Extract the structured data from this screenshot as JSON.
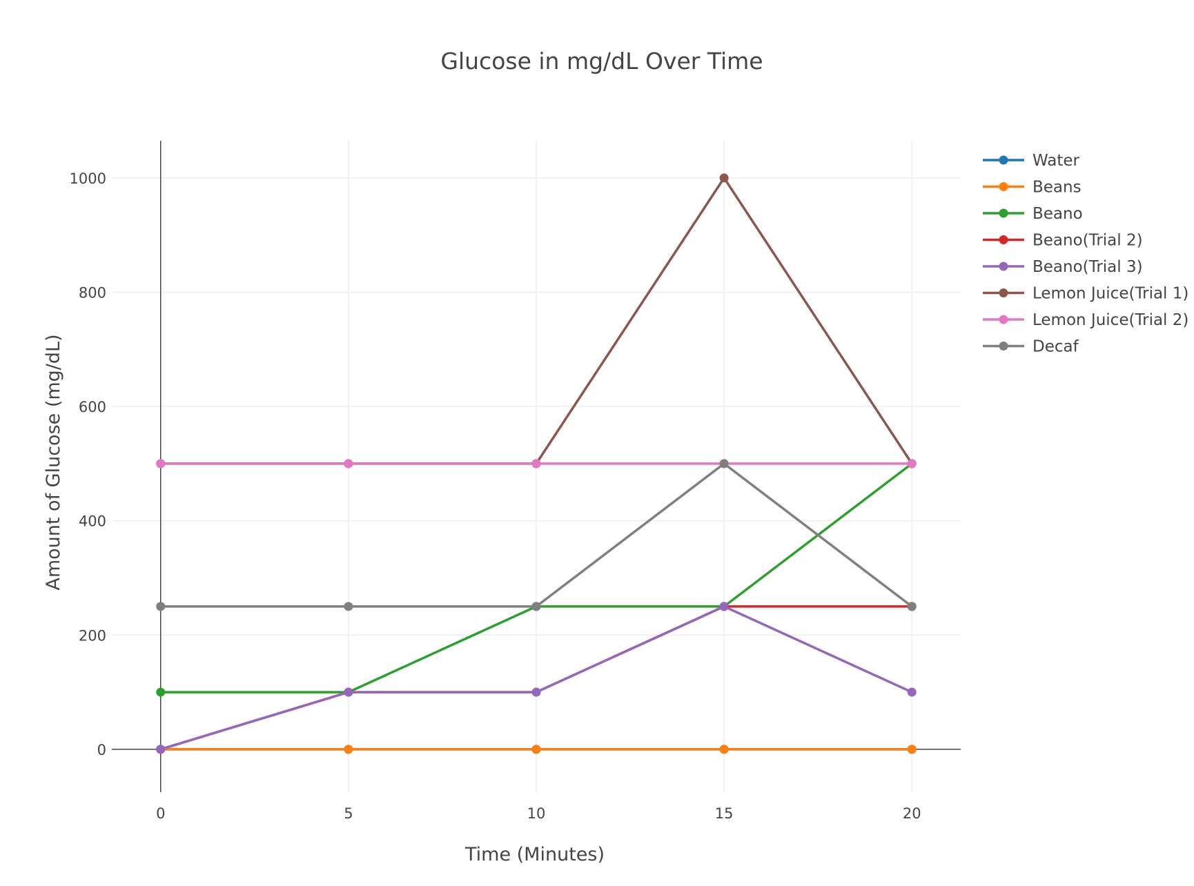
{
  "chart_data": {
    "type": "line",
    "title": "Glucose in mg/dL Over Time",
    "xlabel": "Time (Minutes)",
    "ylabel": "Amount of Glucose (mg/dL)",
    "x": [
      0,
      5,
      10,
      15,
      20
    ],
    "x_ticks": [
      0,
      5,
      10,
      15,
      20
    ],
    "y_ticks": [
      0,
      200,
      400,
      600,
      800,
      1000
    ],
    "xlim": [
      -1.3,
      21.3
    ],
    "ylim": [
      -75,
      1065
    ],
    "grid": true,
    "legend_position": "right",
    "series": [
      {
        "name": "Water",
        "color": "#1f77b4",
        "values": [
          0,
          0,
          0,
          0,
          0
        ]
      },
      {
        "name": "Beans",
        "color": "#ff7f0e",
        "values": [
          0,
          0,
          0,
          0,
          0
        ]
      },
      {
        "name": "Beano",
        "color": "#2ca02c",
        "values": [
          100,
          100,
          250,
          250,
          500
        ]
      },
      {
        "name": "Beano(Trial 2)",
        "color": "#d62728",
        "values": [
          0,
          100,
          100,
          250,
          250
        ]
      },
      {
        "name": "Beano(Trial 3)",
        "color": "#9467bd",
        "values": [
          0,
          100,
          100,
          250,
          100
        ]
      },
      {
        "name": "Lemon Juice(Trial 1)",
        "color": "#8c564b",
        "values": [
          500,
          500,
          500,
          1000,
          500
        ]
      },
      {
        "name": "Lemon Juice(Trial 2)",
        "color": "#e377c2",
        "values": [
          500,
          500,
          500,
          500,
          500
        ]
      },
      {
        "name": "Decaf",
        "color": "#7f7f7f",
        "values": [
          250,
          250,
          250,
          500,
          250
        ]
      }
    ]
  }
}
